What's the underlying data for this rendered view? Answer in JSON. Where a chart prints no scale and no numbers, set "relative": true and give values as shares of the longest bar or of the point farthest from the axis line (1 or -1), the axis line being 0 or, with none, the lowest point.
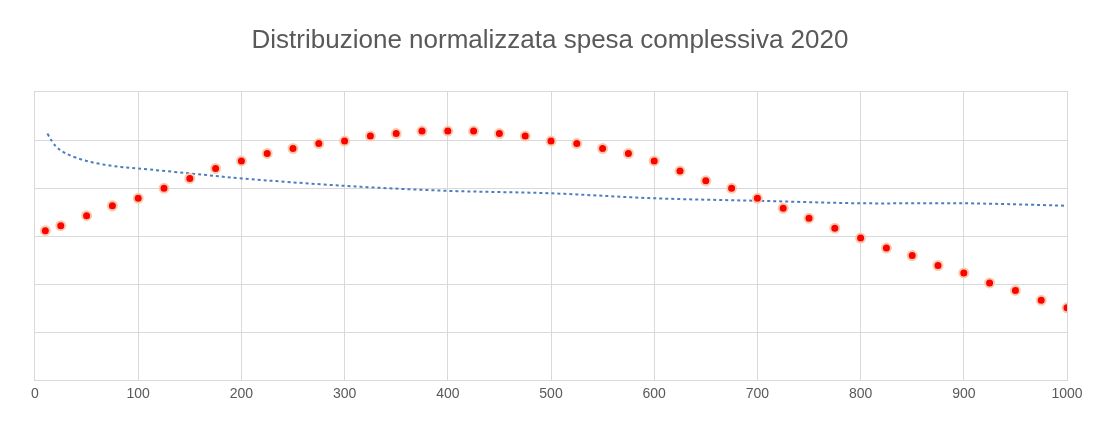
{
  "chart_data": {
    "type": "scatter",
    "title": "Distribuzione normalizzata spesa complessiva 2020",
    "relative": true,
    "xlim": [
      0,
      1000
    ],
    "xticks": [
      0,
      100,
      200,
      300,
      400,
      500,
      600,
      700,
      800,
      900,
      1000
    ],
    "grid": true,
    "series": [
      {
        "type": "line",
        "color": "#4a7ebf",
        "line_style": "dotted",
        "marker": "none",
        "x": [
          12,
          20,
          30,
          50,
          75,
          100,
          150,
          200,
          300,
          400,
          500,
          600,
          700,
          800,
          900,
          1000
        ],
        "values": [
          0.99,
          0.94,
          0.91,
          0.88,
          0.86,
          0.85,
          0.83,
          0.81,
          0.78,
          0.76,
          0.75,
          0.73,
          0.72,
          0.71,
          0.71,
          0.7
        ]
      },
      {
        "color": "#ff0000",
        "marker": "circle",
        "x": [
          10,
          25,
          50,
          75,
          100,
          125,
          150,
          175,
          200,
          225,
          250,
          275,
          300,
          325,
          350,
          375,
          400,
          425,
          450,
          475,
          500,
          525,
          550,
          575,
          600,
          625,
          650,
          675,
          700,
          725,
          750,
          775,
          800,
          825,
          850,
          875,
          900,
          925,
          950,
          975,
          1000
        ],
        "values": [
          0.6,
          0.62,
          0.66,
          0.7,
          0.73,
          0.77,
          0.81,
          0.85,
          0.88,
          0.91,
          0.93,
          0.95,
          0.96,
          0.98,
          0.99,
          1.0,
          1.0,
          1.0,
          0.99,
          0.98,
          0.96,
          0.95,
          0.93,
          0.91,
          0.88,
          0.84,
          0.8,
          0.77,
          0.73,
          0.69,
          0.65,
          0.61,
          0.57,
          0.53,
          0.5,
          0.46,
          0.43,
          0.39,
          0.36,
          0.32,
          0.29
        ]
      }
    ]
  }
}
